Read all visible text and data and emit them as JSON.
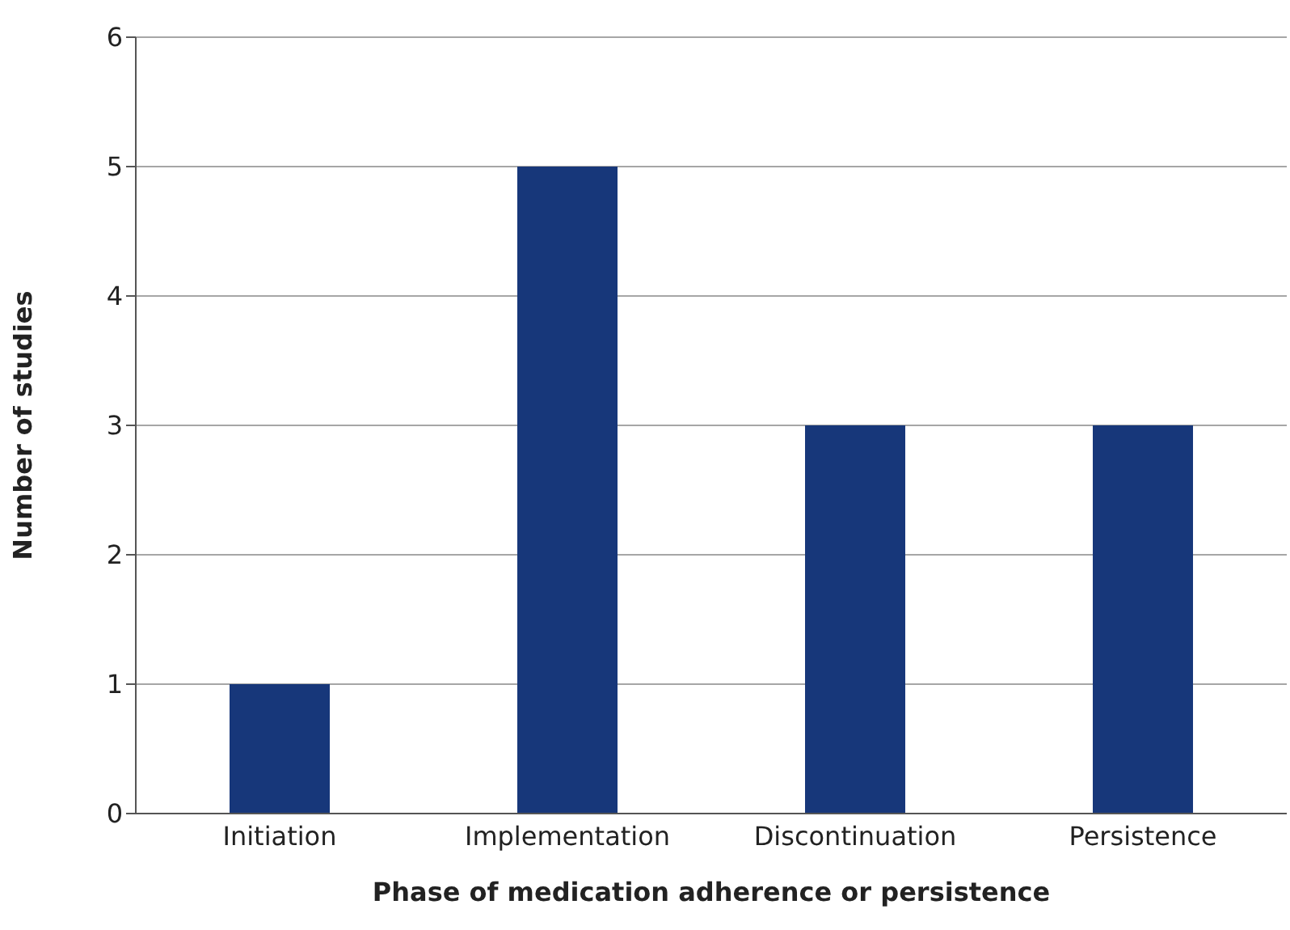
{
  "chart_data": {
    "type": "bar",
    "xlabel": "Phase of medication adherence or persistence",
    "ylabel": "Number of studies",
    "categories": [
      "Initiation",
      "Implementation",
      "Discontinuation",
      "Persistence"
    ],
    "values": [
      1,
      5,
      3,
      3
    ],
    "color": "#17377a",
    "ylim": [
      0,
      6
    ],
    "yticks": [
      0,
      1,
      2,
      3,
      4,
      5,
      6
    ],
    "grid": "y"
  }
}
